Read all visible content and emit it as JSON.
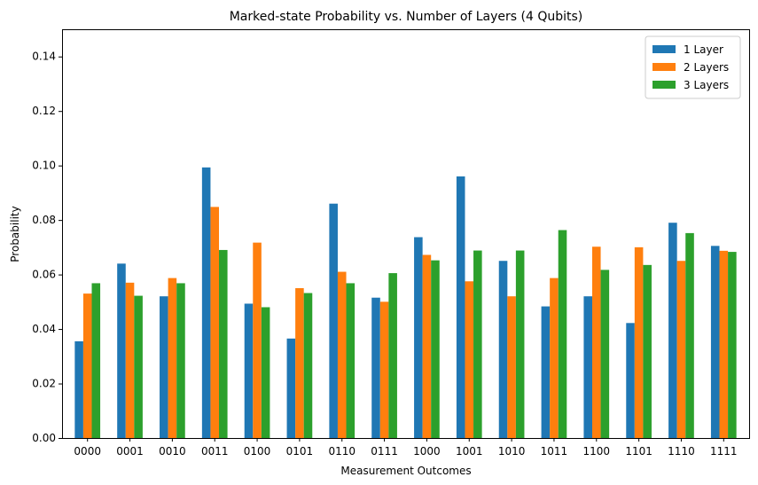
{
  "chart_data": {
    "type": "bar",
    "title": "Marked-state Probability vs. Number of Layers (4 Qubits)",
    "xlabel": "Measurement Outcomes",
    "ylabel": "Probability",
    "ylim": [
      0,
      0.15
    ],
    "yticks": [
      "0.00",
      "0.02",
      "0.04",
      "0.06",
      "0.08",
      "0.10",
      "0.12",
      "0.14"
    ],
    "grid": false,
    "legend_position": "top-right",
    "categories": [
      "0000",
      "0001",
      "0010",
      "0011",
      "0100",
      "0101",
      "0110",
      "0111",
      "1000",
      "1001",
      "1010",
      "1011",
      "1100",
      "1101",
      "1110",
      "1111"
    ],
    "series": [
      {
        "name": "1 Layer",
        "color": "#1f77b4",
        "values": [
          0.0355,
          0.064,
          0.052,
          0.0993,
          0.0493,
          0.0365,
          0.086,
          0.0515,
          0.0737,
          0.096,
          0.065,
          0.0483,
          0.052,
          0.0422,
          0.079,
          0.0705
        ]
      },
      {
        "name": "2 Layers",
        "color": "#ff7f0e",
        "values": [
          0.053,
          0.057,
          0.0587,
          0.0848,
          0.0717,
          0.055,
          0.061,
          0.05,
          0.0672,
          0.0575,
          0.052,
          0.0587,
          0.0702,
          0.07,
          0.065,
          0.0687
        ]
      },
      {
        "name": "3 Layers",
        "color": "#2ca02c",
        "values": [
          0.0568,
          0.0522,
          0.0568,
          0.069,
          0.048,
          0.0532,
          0.0568,
          0.0605,
          0.0652,
          0.0688,
          0.0688,
          0.0763,
          0.0617,
          0.0635,
          0.0752,
          0.0683
        ]
      }
    ]
  }
}
